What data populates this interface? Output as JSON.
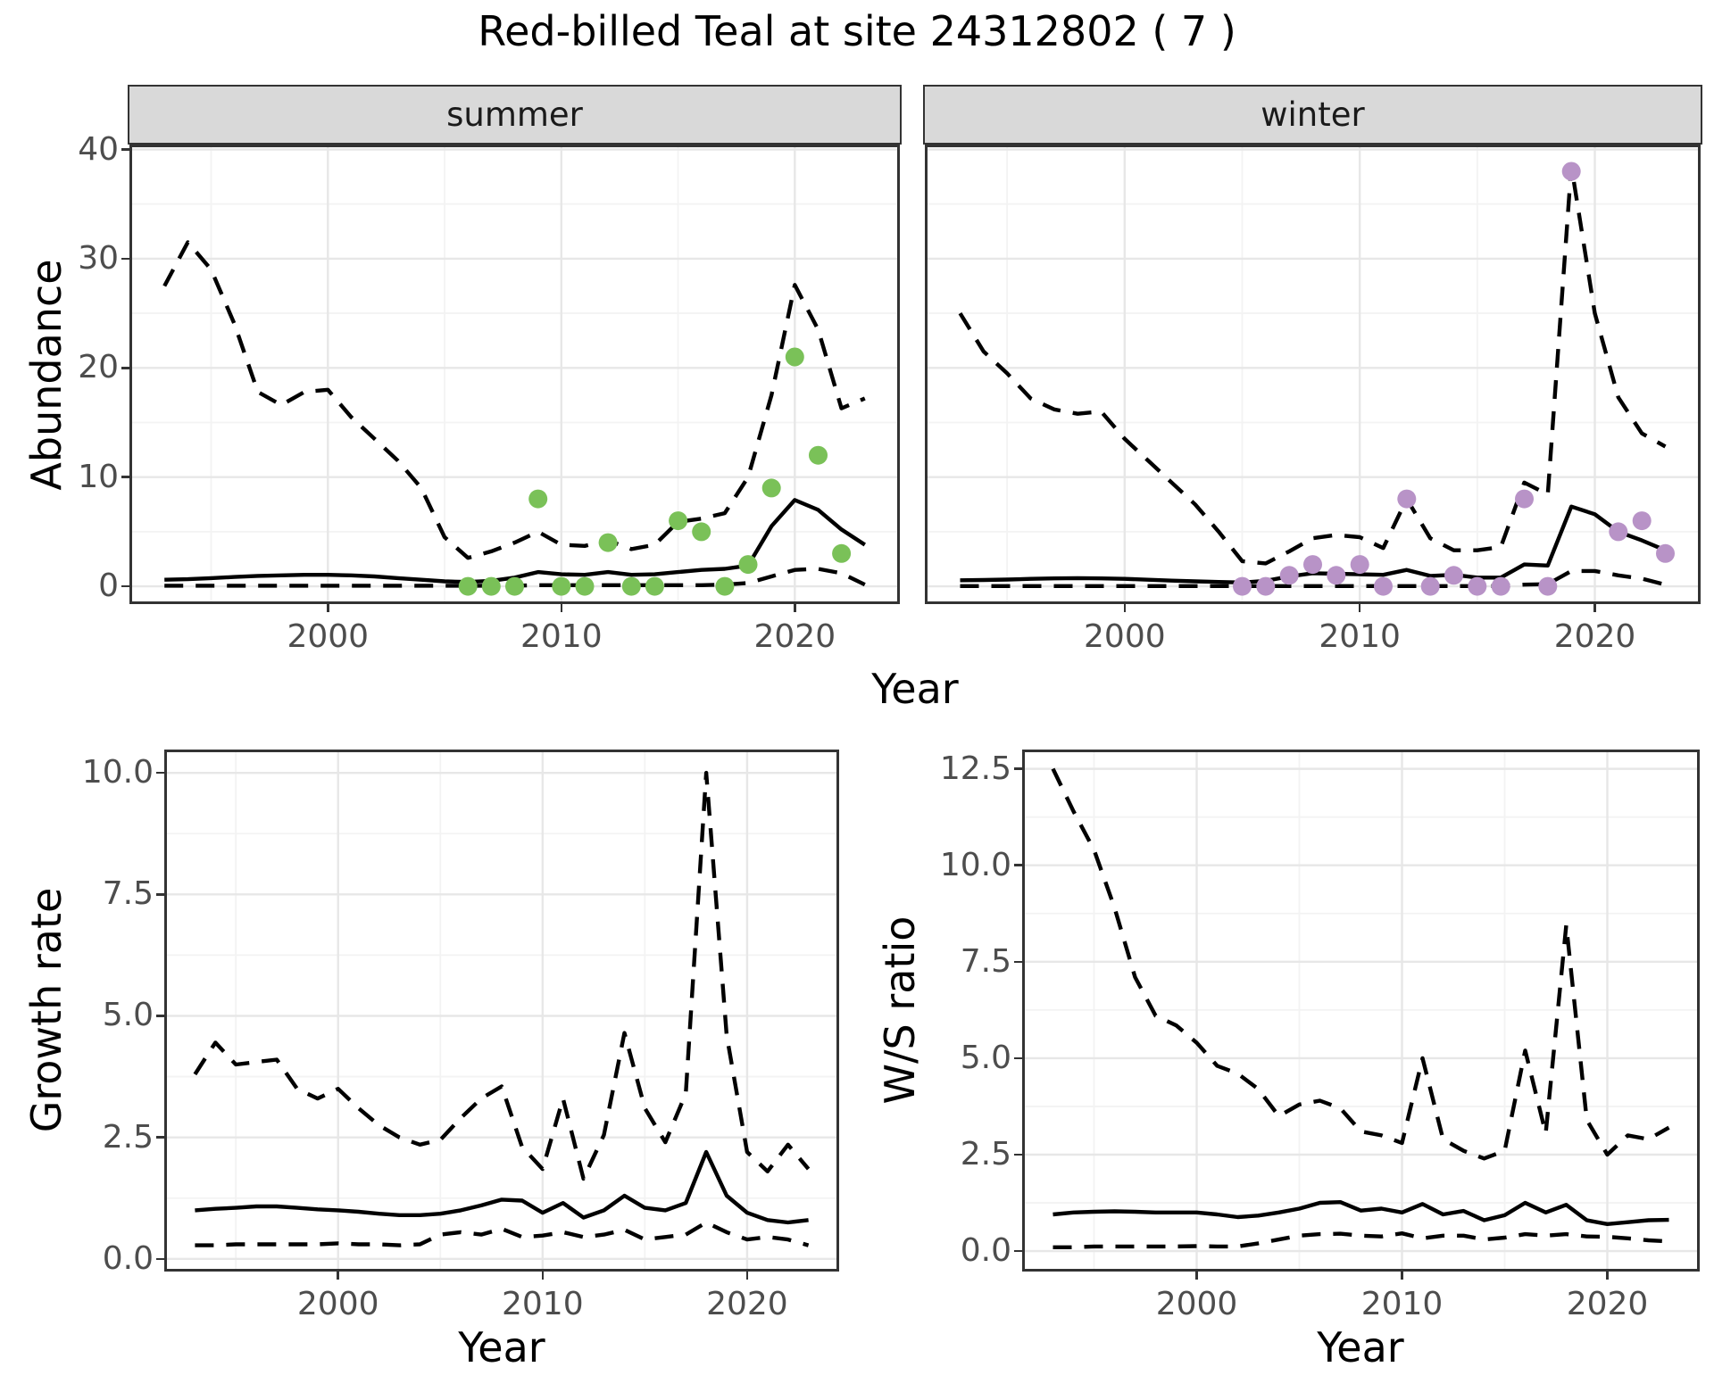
{
  "title": "Red-billed Teal at site 24312802 ( 7 )",
  "facet_labels": {
    "summer": "summer",
    "winter": "winter"
  },
  "axes": {
    "x": "Year",
    "abundance": "Abundance",
    "growth": "Growth rate",
    "ws": "W/S ratio"
  },
  "colors": {
    "summer_points": "#7AC158",
    "winter_points": "#B893C7",
    "line": "#000000",
    "strip_bg": "#D9D9D9",
    "grid_major": "#E7E7E7",
    "grid_minor": "#F3F3F3",
    "tick_text": "#4D4D4D",
    "panel_border": "#333333"
  },
  "chart_data": [
    {
      "id": "abundance-summer",
      "type": "line",
      "facet": "summer",
      "xlabel": "Year",
      "ylabel": "Abundance",
      "xlim": [
        1991.5,
        2024.5
      ],
      "ylim": [
        0,
        40
      ],
      "x_ticks": [
        2000,
        2010,
        2020
      ],
      "x_tick_labels": [
        "2000",
        "2010",
        "2020"
      ],
      "x_minor": [
        1995,
        2005,
        2015
      ],
      "y_ticks": [
        0,
        10,
        20,
        30,
        40
      ],
      "y_tick_labels": [
        "0",
        "10",
        "20",
        "30",
        "40"
      ],
      "y_minor": [
        5,
        15,
        25,
        35
      ],
      "years": [
        1993,
        1994,
        1995,
        1996,
        1997,
        1998,
        1999,
        2000,
        2001,
        2002,
        2003,
        2004,
        2005,
        2006,
        2007,
        2008,
        2009,
        2010,
        2011,
        2012,
        2013,
        2014,
        2015,
        2016,
        2017,
        2018,
        2019,
        2020,
        2021,
        2022,
        2023
      ],
      "series": [
        {
          "name": "upper_95CI",
          "style": "dashed",
          "values": [
            27.5,
            31.5,
            29.0,
            24.0,
            17.8,
            16.6,
            17.8,
            18.0,
            15.5,
            13.5,
            11.5,
            9.0,
            4.5,
            2.6,
            3.2,
            4.0,
            5.0,
            3.8,
            3.7,
            4.2,
            3.4,
            3.8,
            5.9,
            6.2,
            6.7,
            10.0,
            17.5,
            27.6,
            23.5,
            16.3,
            17.2
          ]
        },
        {
          "name": "median",
          "style": "solid",
          "values": [
            0.6,
            0.65,
            0.75,
            0.85,
            0.95,
            1.0,
            1.05,
            1.05,
            1.0,
            0.9,
            0.75,
            0.6,
            0.45,
            0.4,
            0.5,
            0.8,
            1.3,
            1.1,
            1.05,
            1.3,
            1.05,
            1.1,
            1.3,
            1.5,
            1.6,
            1.9,
            5.5,
            7.9,
            7.0,
            5.2,
            3.8
          ]
        },
        {
          "name": "lower_95CI",
          "style": "dashed",
          "values": [
            0.05,
            0.05,
            0.05,
            0.05,
            0.05,
            0.05,
            0.05,
            0.05,
            0.05,
            0.05,
            0.05,
            0.05,
            0.05,
            0.05,
            0.05,
            0.05,
            0.1,
            0.1,
            0.1,
            0.1,
            0.1,
            0.1,
            0.1,
            0.1,
            0.15,
            0.3,
            0.9,
            1.5,
            1.6,
            1.2,
            0.15
          ]
        }
      ],
      "points": {
        "name": "observed_count",
        "color": "#7AC158",
        "years": [
          2006,
          2007,
          2008,
          2009,
          2010,
          2011,
          2012,
          2013,
          2014,
          2015,
          2016,
          2017,
          2018,
          2019,
          2020,
          2021,
          2022
        ],
        "values": [
          0,
          0,
          0,
          8,
          0,
          0,
          4,
          0,
          0,
          6,
          5,
          0,
          2,
          9,
          21,
          12,
          3
        ]
      }
    },
    {
      "id": "abundance-winter",
      "type": "line",
      "facet": "winter",
      "xlabel": "Year",
      "ylabel": "Abundance",
      "xlim": [
        1991.5,
        2024.5
      ],
      "ylim": [
        0,
        40
      ],
      "x_ticks": [
        2000,
        2010,
        2020
      ],
      "x_tick_labels": [
        "2000",
        "2010",
        "2020"
      ],
      "x_minor": [
        1995,
        2005,
        2015
      ],
      "y_ticks": [
        0,
        10,
        20,
        30,
        40
      ],
      "y_tick_labels": [
        "0",
        "10",
        "20",
        "30",
        "40"
      ],
      "y_minor": [
        5,
        15,
        25,
        35
      ],
      "years": [
        1993,
        1994,
        1995,
        1996,
        1997,
        1998,
        1999,
        2000,
        2001,
        2002,
        2003,
        2004,
        2005,
        2006,
        2007,
        2008,
        2009,
        2010,
        2011,
        2012,
        2013,
        2014,
        2015,
        2016,
        2017,
        2018,
        2019,
        2020,
        2021,
        2022,
        2023
      ],
      "series": [
        {
          "name": "upper_95CI",
          "style": "dashed",
          "values": [
            25.0,
            21.5,
            19.5,
            17.2,
            16.2,
            15.8,
            16.0,
            13.5,
            11.5,
            9.5,
            7.5,
            5.0,
            2.3,
            2.1,
            3.2,
            4.4,
            4.7,
            4.5,
            3.5,
            8.0,
            4.4,
            3.3,
            3.3,
            3.6,
            9.5,
            8.4,
            38.5,
            25.0,
            17.3,
            14.0,
            12.8
          ]
        },
        {
          "name": "median",
          "style": "solid",
          "values": [
            0.55,
            0.58,
            0.62,
            0.68,
            0.72,
            0.75,
            0.72,
            0.68,
            0.6,
            0.52,
            0.45,
            0.4,
            0.35,
            0.5,
            0.9,
            1.2,
            1.15,
            1.1,
            1.05,
            1.5,
            0.95,
            1.05,
            0.8,
            0.8,
            2.0,
            1.9,
            7.3,
            6.6,
            5.0,
            4.2,
            3.3
          ]
        },
        {
          "name": "lower_95CI",
          "style": "dashed",
          "values": [
            0.02,
            0.02,
            0.02,
            0.02,
            0.02,
            0.02,
            0.02,
            0.02,
            0.02,
            0.02,
            0.02,
            0.02,
            0.02,
            0.02,
            0.02,
            0.02,
            0.02,
            0.02,
            0.02,
            0.02,
            0.02,
            0.02,
            0.02,
            0.02,
            0.15,
            0.2,
            1.4,
            1.4,
            1.0,
            0.7,
            0.15
          ]
        }
      ],
      "points": {
        "name": "observed_count",
        "color": "#B893C7",
        "years": [
          2005,
          2006,
          2007,
          2008,
          2009,
          2010,
          2011,
          2012,
          2013,
          2014,
          2015,
          2016,
          2017,
          2018,
          2019,
          2021,
          2022,
          2023
        ],
        "values": [
          0,
          0,
          1,
          2,
          1,
          2,
          0,
          8,
          0,
          1,
          0,
          0,
          8,
          0,
          38,
          5,
          6,
          3
        ]
      }
    },
    {
      "id": "growth-rate",
      "type": "line",
      "facet": null,
      "xlabel": "Year",
      "ylabel": "Growth rate",
      "xlim": [
        1991.5,
        2024.5
      ],
      "ylim": [
        0,
        10
      ],
      "x_ticks": [
        2000,
        2010,
        2020
      ],
      "x_tick_labels": [
        "2000",
        "2010",
        "2020"
      ],
      "x_minor": [
        1995,
        2005,
        2015
      ],
      "y_ticks": [
        0,
        2.5,
        5,
        7.5,
        10
      ],
      "y_tick_labels": [
        "0.0",
        "2.5",
        "5.0",
        "7.5",
        "10.0"
      ],
      "y_minor": [
        1.25,
        3.75,
        6.25,
        8.75
      ],
      "years": [
        1993,
        1994,
        1995,
        1996,
        1997,
        1998,
        1999,
        2000,
        2001,
        2002,
        2003,
        2004,
        2005,
        2006,
        2007,
        2008,
        2009,
        2010,
        2011,
        2012,
        2013,
        2014,
        2015,
        2016,
        2017,
        2018,
        2019,
        2020,
        2021,
        2022,
        2023
      ],
      "series": [
        {
          "name": "upper_95CI",
          "style": "dashed",
          "values": [
            3.8,
            4.45,
            4.0,
            4.05,
            4.1,
            3.5,
            3.3,
            3.5,
            3.1,
            2.75,
            2.5,
            2.35,
            2.45,
            2.9,
            3.3,
            3.55,
            2.3,
            1.85,
            3.3,
            1.65,
            2.55,
            4.65,
            3.1,
            2.4,
            3.4,
            10.0,
            4.6,
            2.2,
            1.8,
            2.35,
            1.85
          ]
        },
        {
          "name": "median",
          "style": "solid",
          "values": [
            1.0,
            1.03,
            1.05,
            1.08,
            1.08,
            1.05,
            1.02,
            1.0,
            0.97,
            0.93,
            0.9,
            0.9,
            0.93,
            1.0,
            1.1,
            1.22,
            1.2,
            0.95,
            1.15,
            0.85,
            1.0,
            1.3,
            1.05,
            1.0,
            1.15,
            2.2,
            1.3,
            0.95,
            0.8,
            0.75,
            0.8
          ]
        },
        {
          "name": "lower_95CI",
          "style": "dashed",
          "values": [
            0.28,
            0.28,
            0.3,
            0.3,
            0.3,
            0.3,
            0.3,
            0.32,
            0.3,
            0.3,
            0.28,
            0.3,
            0.5,
            0.55,
            0.5,
            0.62,
            0.45,
            0.48,
            0.55,
            0.45,
            0.5,
            0.6,
            0.4,
            0.45,
            0.5,
            0.75,
            0.55,
            0.4,
            0.45,
            0.4,
            0.28
          ]
        }
      ],
      "points": null
    },
    {
      "id": "ws-ratio",
      "type": "line",
      "facet": null,
      "xlabel": "Year",
      "ylabel": "W/S ratio",
      "xlim": [
        1991.5,
        2024.5
      ],
      "ylim": [
        0,
        12.5
      ],
      "x_ticks": [
        2000,
        2010,
        2020
      ],
      "x_tick_labels": [
        "2000",
        "2010",
        "2020"
      ],
      "x_minor": [
        1995,
        2005,
        2015
      ],
      "y_ticks": [
        0,
        2.5,
        5,
        7.5,
        10,
        12.5
      ],
      "y_tick_labels": [
        "0.0",
        "2.5",
        "5.0",
        "7.5",
        "10.0",
        "12.5"
      ],
      "y_minor": [
        1.25,
        3.75,
        6.25,
        8.75,
        11.25
      ],
      "years": [
        1993,
        1994,
        1995,
        1996,
        1997,
        1998,
        1999,
        2000,
        2001,
        2002,
        2003,
        2004,
        2005,
        2006,
        2007,
        2008,
        2009,
        2010,
        2011,
        2012,
        2013,
        2014,
        2015,
        2016,
        2017,
        2018,
        2019,
        2020,
        2021,
        2022,
        2023
      ],
      "series": [
        {
          "name": "upper_95CI",
          "style": "dashed",
          "values": [
            12.5,
            11.4,
            10.4,
            8.9,
            7.1,
            6.1,
            5.85,
            5.4,
            4.8,
            4.6,
            4.2,
            3.5,
            3.8,
            3.9,
            3.7,
            3.1,
            3.0,
            2.8,
            5.0,
            2.9,
            2.6,
            2.4,
            2.6,
            5.2,
            3.05,
            8.45,
            3.4,
            2.5,
            3.0,
            2.9,
            3.2
          ]
        },
        {
          "name": "median",
          "style": "solid",
          "values": [
            0.95,
            1.0,
            1.02,
            1.03,
            1.02,
            1.0,
            1.0,
            1.0,
            0.95,
            0.88,
            0.92,
            1.0,
            1.1,
            1.25,
            1.27,
            1.05,
            1.1,
            1.0,
            1.22,
            0.95,
            1.04,
            0.8,
            0.93,
            1.25,
            1.0,
            1.2,
            0.8,
            0.7,
            0.75,
            0.8,
            0.81
          ]
        },
        {
          "name": "lower_95CI",
          "style": "dashed",
          "values": [
            0.1,
            0.1,
            0.12,
            0.12,
            0.12,
            0.12,
            0.12,
            0.13,
            0.12,
            0.12,
            0.2,
            0.3,
            0.4,
            0.44,
            0.45,
            0.4,
            0.38,
            0.46,
            0.33,
            0.4,
            0.4,
            0.3,
            0.35,
            0.44,
            0.4,
            0.44,
            0.38,
            0.37,
            0.33,
            0.28,
            0.25
          ]
        }
      ],
      "points": null
    }
  ]
}
